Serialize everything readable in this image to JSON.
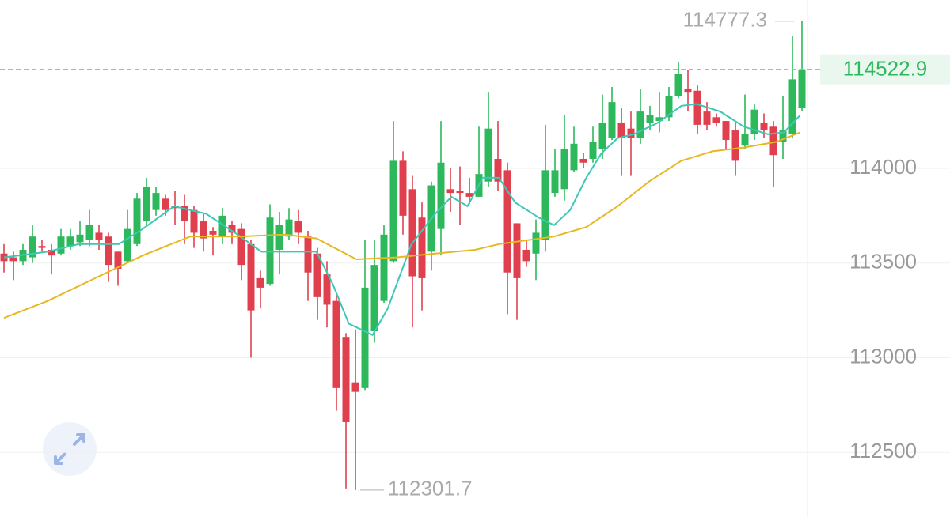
{
  "chart_data": {
    "type": "candlestick",
    "up_color": "#2db85c",
    "down_color": "#e0404e",
    "ylim": [
      112159,
      114889
    ],
    "yticks": [
      112500,
      113000,
      113500,
      114000
    ],
    "grid": true,
    "open": [
      113550,
      113530,
      113510,
      113530,
      113590,
      113570,
      113550,
      113590,
      113610,
      113620,
      113660,
      113640,
      113560,
      113510,
      113600,
      113720,
      113780,
      113840,
      113800,
      113800,
      113780,
      113720,
      113670,
      113640,
      113700,
      113680,
      113600,
      113420,
      113390,
      113570,
      113640,
      113720,
      113640,
      113550,
      113440,
      113300,
      113110,
      112870,
      112840,
      113140,
      113300,
      113510,
      114040,
      113890,
      113740,
      113560,
      113680,
      113890,
      113880,
      113870,
      113850,
      113930,
      114050,
      113990,
      113710,
      113570,
      113550,
      113620,
      113870,
      113890,
      113990,
      114050,
      114050,
      114100,
      114160,
      114240,
      114210,
      114160,
      114240,
      114250,
      114270,
      114380,
      114420,
      114410,
      114300,
      114270,
      114250,
      114200,
      114120,
      114180,
      114240,
      114220,
      114140,
      114180,
      114320
    ],
    "high": [
      113600,
      113560,
      113600,
      113700,
      113620,
      113600,
      113680,
      113680,
      113720,
      113780,
      113700,
      113660,
      113560,
      113780,
      113870,
      113950,
      113900,
      113860,
      113880,
      113860,
      113800,
      113760,
      113690,
      113790,
      113720,
      113710,
      113620,
      113460,
      113810,
      113770,
      113790,
      113780,
      113670,
      113580,
      113510,
      113340,
      113130,
      113150,
      113620,
      113620,
      113700,
      114250,
      114090,
      113960,
      113820,
      113930,
      114250,
      114000,
      114010,
      113950,
      114220,
      114400,
      114250,
      114030,
      113710,
      113620,
      113730,
      114230,
      114100,
      114280,
      114220,
      114080,
      114220,
      114390,
      114430,
      114320,
      114300,
      114420,
      114330,
      114400,
      114430,
      114560,
      114520,
      114440,
      114350,
      114290,
      114250,
      114250,
      114390,
      114340,
      114290,
      114250,
      114380,
      114700,
      114777.3
    ],
    "low": [
      113450,
      113410,
      113490,
      113500,
      113560,
      113440,
      113540,
      113570,
      113590,
      113590,
      113570,
      113400,
      113380,
      113500,
      113590,
      113700,
      113750,
      113750,
      113700,
      113600,
      113580,
      113560,
      113540,
      113600,
      113600,
      113410,
      113000,
      113260,
      113380,
      113440,
      113620,
      113600,
      113300,
      113200,
      113160,
      112720,
      112310,
      112301.7,
      112830,
      113080,
      113290,
      113500,
      113650,
      113160,
      113250,
      113460,
      113540,
      113770,
      113700,
      113810,
      113850,
      113900,
      113880,
      113230,
      113200,
      113480,
      113410,
      113560,
      113850,
      113830,
      113980,
      114000,
      114030,
      114050,
      114150,
      113960,
      113960,
      114130,
      114200,
      114190,
      114250,
      114370,
      114300,
      114180,
      114200,
      114220,
      114100,
      113960,
      114100,
      114150,
      114160,
      113900,
      114050,
      114160,
      114300
    ],
    "close": [
      113510,
      113510,
      113570,
      113640,
      113580,
      113540,
      113640,
      113640,
      113650,
      113700,
      113620,
      113490,
      113470,
      113680,
      113840,
      113900,
      113870,
      113780,
      113790,
      113720,
      113660,
      113630,
      113650,
      113750,
      113660,
      113490,
      113250,
      113370,
      113740,
      113700,
      113730,
      113660,
      113450,
      113320,
      113280,
      112840,
      112660,
      112820,
      113370,
      113490,
      113650,
      114040,
      113750,
      113430,
      113420,
      113910,
      114030,
      113870,
      113870,
      113850,
      113970,
      114210,
      113930,
      113450,
      113420,
      113510,
      113660,
      113990,
      113990,
      114100,
      114130,
      114030,
      114140,
      114240,
      114350,
      114160,
      114160,
      114300,
      114280,
      114270,
      114380,
      114500,
      114400,
      114230,
      114230,
      114240,
      114150,
      114040,
      114180,
      114310,
      114200,
      114070,
      114200,
      114470,
      114522.9
    ],
    "lines": [
      {
        "color": "#3cc8b4",
        "x": [
          0,
          4.6,
          7.9,
          12.1,
          14.6,
          17.9,
          21.3,
          24.6,
          27.1,
          29.6,
          32.9,
          34.6,
          36.3,
          38.8,
          40.4,
          42.9,
          45.4,
          47.1,
          48.8,
          50.4,
          52.1,
          53.8,
          56.3,
          57.9,
          59.6,
          61.3,
          62.9,
          64.6,
          66.3,
          68.8,
          71.3,
          72.9,
          75.4,
          77.9,
          80.4,
          82.1,
          83.8
        ],
        "values": [
          113530,
          113560,
          113600,
          113600,
          113680,
          113800,
          113760,
          113650,
          113560,
          113560,
          113560,
          113390,
          113180,
          113120,
          113260,
          113600,
          113760,
          113850,
          113800,
          113950,
          113950,
          113820,
          113740,
          113700,
          113780,
          113950,
          114080,
          114160,
          114180,
          114240,
          114330,
          114340,
          114300,
          114220,
          114180,
          114190,
          114280
        ]
      },
      {
        "color": "#e8b820",
        "x": [
          0,
          4.6,
          9.6,
          14.6,
          19.6,
          24.6,
          29.6,
          32.9,
          37.1,
          41.3,
          45.4,
          49.6,
          52.1,
          57.9,
          61.3,
          64.6,
          67.9,
          71.3,
          74.6,
          77.9,
          81.3,
          83.8
        ],
        "values": [
          113210,
          113300,
          113420,
          113540,
          113640,
          113640,
          113650,
          113630,
          113520,
          113530,
          113550,
          113570,
          113600,
          113640,
          113690,
          113800,
          113930,
          114040,
          114090,
          114110,
          114140,
          114190
        ]
      }
    ]
  }
}
